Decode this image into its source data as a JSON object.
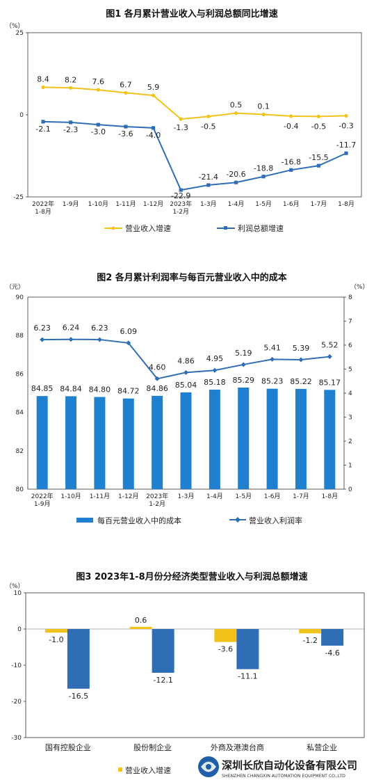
{
  "chart_data": [
    {
      "type": "line",
      "title": "图1  各月累计营业收入与利润总额同比增速",
      "unit": "（%）",
      "ylim": [
        -25,
        25
      ],
      "yticks": [
        "25",
        "0",
        "-25"
      ],
      "categories": [
        "2022年|1-8月",
        "1-9月",
        "1-10月",
        "1-11月",
        "1-12月",
        "2023年|1-2月",
        "1-3月",
        "1-4月",
        "1-5月",
        "1-6月",
        "1-7月",
        "1-8月"
      ],
      "series": [
        {
          "name": "营业收入增速",
          "color": "#f2c21b",
          "values": [
            8.4,
            8.2,
            7.6,
            6.7,
            5.9,
            -1.3,
            -0.5,
            0.5,
            0.1,
            -0.4,
            -0.5,
            -0.3
          ],
          "labels": [
            "8.4",
            "8.2",
            "7.6",
            "6.7",
            "5.9",
            "-1.3",
            "-0.5",
            "0.5",
            "0.1",
            "-0.4",
            "-0.5",
            "-0.3"
          ]
        },
        {
          "name": "利润总额增速",
          "color": "#2f6db5",
          "values": [
            -2.1,
            -2.3,
            -3.0,
            -3.6,
            -4.0,
            -22.9,
            -21.4,
            -20.6,
            -18.8,
            -16.8,
            -15.5,
            -11.7
          ],
          "labels": [
            "-2.1",
            "-2.3",
            "-3.0",
            "-3.6",
            "-4.0",
            "-22.9",
            "-21.4",
            "-20.6",
            "-18.8",
            "-16.8",
            "-15.5",
            "-11.7"
          ]
        }
      ],
      "legend": "bottom"
    },
    {
      "type": "bar+line",
      "title": "图2  各月累计利润率与每百元营业收入中的成本",
      "unit_left": "（元）",
      "unit_right": "（%）",
      "ylim_left": [
        80,
        90
      ],
      "yticks_left": [
        "90",
        "88",
        "86",
        "84",
        "82",
        "80"
      ],
      "ylim_right": [
        0,
        8
      ],
      "yticks_right": [
        "8",
        "7",
        "6",
        "5",
        "4",
        "3",
        "2",
        "1",
        "0"
      ],
      "categories": [
        "2022年|1-9月",
        "1-10月",
        "1-11月",
        "1-12月",
        "2023年|1-2月",
        "1-3月",
        "1-4月",
        "1-5月",
        "1-6月",
        "1-7月",
        "1-8月"
      ],
      "bars": {
        "name": "每百元营业收入中的成本",
        "color": "#1f80d0",
        "values": [
          84.85,
          84.84,
          84.8,
          84.72,
          84.86,
          85.04,
          85.18,
          85.29,
          85.23,
          85.22,
          85.17
        ],
        "labels": [
          "84.85",
          "84.84",
          "84.80",
          "84.72",
          "84.86",
          "85.04",
          "85.18",
          "85.29",
          "85.23",
          "85.22",
          "85.17"
        ]
      },
      "line": {
        "name": "营业收入利润率",
        "color": "#2f6db5",
        "values": [
          6.23,
          6.24,
          6.23,
          6.09,
          4.6,
          4.86,
          4.95,
          5.19,
          5.41,
          5.39,
          5.52
        ],
        "labels": [
          "6.23",
          "6.24",
          "6.23",
          "6.09",
          "4.60",
          "4.86",
          "4.95",
          "5.19",
          "5.41",
          "5.39",
          "5.52"
        ]
      },
      "legend": "bottom"
    },
    {
      "type": "bar",
      "title": "图3  2023年1-8月份分经济类型营业收入与利润总额增速",
      "unit": "（%）",
      "ylim": [
        -30,
        10
      ],
      "yticks": [
        "10",
        "0",
        "-10",
        "-20",
        "-30"
      ],
      "categories": [
        "国有控股企业",
        "股份制企业",
        "外商及港澳台商",
        "私营企业"
      ],
      "series": [
        {
          "name": "营业收入增速",
          "color": "#f2c21b",
          "values": [
            -1.0,
            0.6,
            -3.6,
            -1.2
          ],
          "labels": [
            "-1.0",
            "0.6",
            "-3.6",
            "-1.2"
          ]
        },
        {
          "name": "利润总额增速",
          "color": "#2f6db5",
          "values": [
            -16.5,
            -12.1,
            -11.1,
            -4.6
          ],
          "labels": [
            "-16.5",
            "-12.1",
            "-11.1",
            "-4.6"
          ]
        }
      ],
      "legend": "bottom"
    }
  ],
  "watermark": {
    "name": "深圳长欣自动化设备有限公司",
    "english": "SHENZHEN CHANGXIN AUTOMATION EQUIPMENT CO.,LTD"
  }
}
